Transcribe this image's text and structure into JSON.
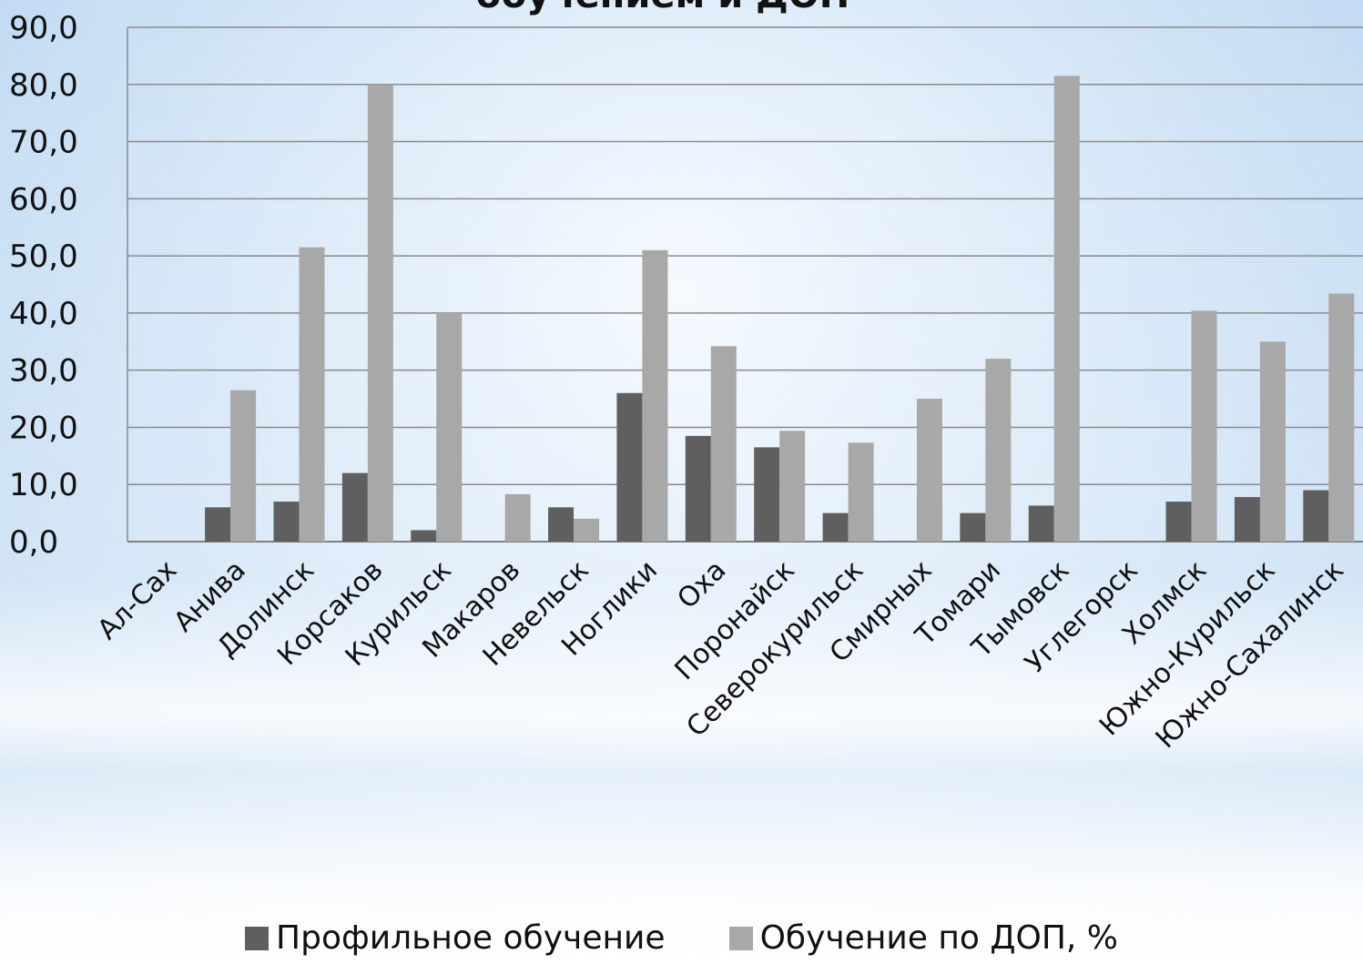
{
  "chart_data": {
    "type": "bar",
    "title": "обучением и ДОП",
    "categories": [
      "Ал-Сах",
      "Анива",
      "Долинск",
      "Корсаков",
      "Курильск",
      "Макаров",
      "Невельск",
      "Ноглики",
      "Оха",
      "Поронайск",
      "Северокурильск",
      "Смирных",
      "Томари",
      "Тымовск",
      "Углегорск",
      "Холмск",
      "Южно-Курильск",
      "Южно-Сахалинск"
    ],
    "series": [
      {
        "name": "Профильное обучение",
        "color": "#5f5f5f",
        "values": [
          0,
          6.0,
          7.0,
          12.0,
          2.0,
          0,
          6.0,
          26.0,
          18.5,
          16.5,
          5.0,
          0,
          5.0,
          6.3,
          0,
          7.0,
          7.8,
          9.0
        ]
      },
      {
        "name": "Обучение по ДОП, %",
        "color": "#a8a8a8",
        "values": [
          0,
          26.5,
          51.5,
          80.0,
          40.0,
          8.3,
          4.0,
          51.0,
          34.2,
          19.4,
          17.3,
          25.0,
          32.0,
          81.5,
          0,
          40.4,
          35.0,
          43.4
        ]
      }
    ],
    "y_ticks": [
      "90,0",
      "80,0",
      "70,0",
      "60,0",
      "50,0",
      "40,0",
      "30,0",
      "20,0",
      "10,0",
      "0,0"
    ],
    "ylim": [
      0,
      90
    ],
    "grid": true,
    "legend_position": "bottom"
  }
}
